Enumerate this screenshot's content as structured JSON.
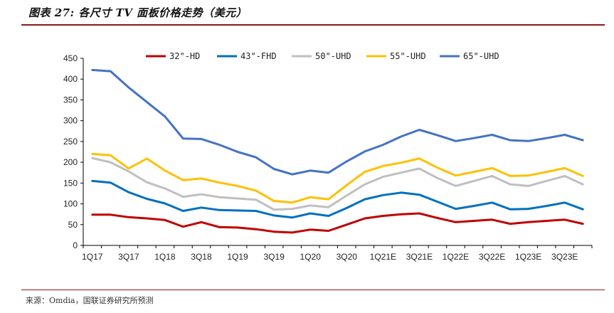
{
  "header": {
    "title": "图表 27: 各尺寸 TV 面板价格走势（美元）"
  },
  "footer": {
    "source": "来源：Omdia，国联证券研究所预测"
  },
  "chart_data": {
    "type": "line",
    "title": "",
    "xlabel": "",
    "ylabel": "",
    "ylim": [
      0,
      450
    ],
    "yticks": [
      0,
      50,
      100,
      150,
      200,
      250,
      300,
      350,
      400,
      450
    ],
    "legend_position": "top",
    "grid": false,
    "categories": [
      "1Q17",
      "2Q17",
      "3Q17",
      "4Q17",
      "1Q18",
      "2Q18",
      "3Q18",
      "4Q18",
      "1Q19",
      "2Q19",
      "3Q19",
      "4Q19",
      "1Q20",
      "2Q20",
      "3Q20",
      "4Q20",
      "1Q21E",
      "2Q21E",
      "3Q21E",
      "4Q21E",
      "1Q22E",
      "2Q22E",
      "3Q22E",
      "4Q22E",
      "1Q23E",
      "2Q23E",
      "3Q23E",
      "4Q23E"
    ],
    "xtick_labels": [
      "1Q17",
      "",
      "3Q17",
      "",
      "1Q18",
      "",
      "3Q18",
      "",
      "1Q19",
      "",
      "3Q19",
      "",
      "1Q20",
      "",
      "3Q20",
      "",
      "1Q21E",
      "",
      "3Q21E",
      "",
      "1Q22E",
      "",
      "3Q22E",
      "",
      "1Q23E",
      "",
      "3Q23E",
      ""
    ],
    "series": [
      {
        "name": "32\"-HD",
        "color": "#c00000",
        "values": [
          74,
          74,
          68,
          65,
          61,
          45,
          56,
          44,
          43,
          39,
          33,
          31,
          38,
          35,
          50,
          65,
          71,
          75,
          77,
          66,
          56,
          59,
          62,
          52,
          56,
          59,
          62,
          52
        ]
      },
      {
        "name": "43\"-FHD",
        "color": "#0070c0",
        "values": [
          155,
          151,
          128,
          112,
          101,
          83,
          91,
          85,
          84,
          83,
          72,
          67,
          77,
          71,
          90,
          111,
          121,
          127,
          122,
          105,
          88,
          95,
          103,
          87,
          88,
          95,
          103,
          87
        ]
      },
      {
        "name": "50\"-UHD",
        "color": "#bfbfbf",
        "values": [
          210,
          200,
          178,
          152,
          137,
          117,
          123,
          116,
          113,
          110,
          86,
          88,
          96,
          92,
          120,
          147,
          165,
          175,
          185,
          162,
          143,
          155,
          167,
          147,
          143,
          155,
          167,
          147
        ]
      },
      {
        "name": "55\"-UHD",
        "color": "#ffc000",
        "values": [
          220,
          217,
          185,
          209,
          180,
          157,
          161,
          151,
          143,
          132,
          107,
          103,
          116,
          111,
          145,
          177,
          191,
          199,
          209,
          187,
          168,
          177,
          186,
          167,
          168,
          177,
          186,
          167
        ]
      },
      {
        "name": "65\"-UHD",
        "color": "#4472c4",
        "values": [
          422,
          419,
          380,
          345,
          310,
          257,
          256,
          242,
          225,
          212,
          184,
          171,
          180,
          175,
          202,
          226,
          242,
          262,
          278,
          265,
          251,
          258,
          266,
          253,
          251,
          258,
          266,
          253
        ]
      }
    ]
  }
}
